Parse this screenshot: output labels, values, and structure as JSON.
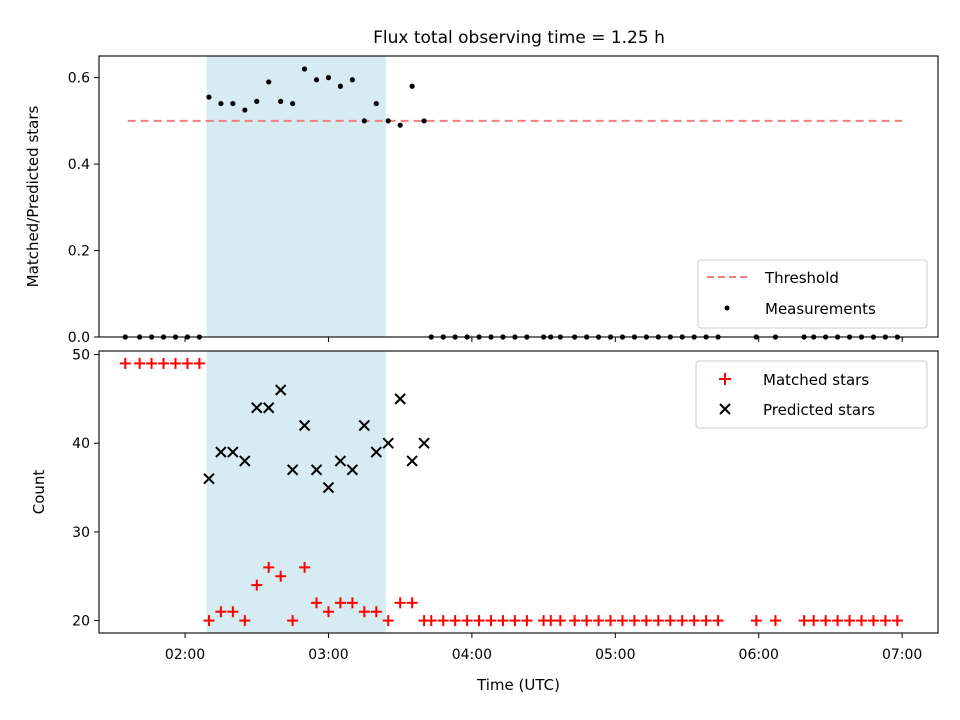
{
  "figure": {
    "title": "Flux total observing time = 1.25 h"
  },
  "colors": {
    "threshold": "#f08080",
    "measurement": "#000000",
    "matched": "#ff0000",
    "predicted": "#000000",
    "band": "#add8e6"
  },
  "chart_data": [
    {
      "type": "scatter",
      "title": "Flux total observing time = 1.25 h",
      "xlabel": "",
      "ylabel": "Matched/Predicted stars",
      "ylim": [
        0,
        0.65
      ],
      "yticks": [
        0.0,
        0.2,
        0.4,
        0.6
      ],
      "ytick_labels": [
        "0.0",
        "0.2",
        "0.4",
        "0.6"
      ],
      "xlim": [
        "01:24",
        "07:15"
      ],
      "x_unit": "time (UTC)",
      "highlight_band": {
        "from": "02:09",
        "to": "03:24"
      },
      "legend": {
        "placement": "lower right",
        "entries": [
          "Threshold",
          "Measurements"
        ]
      },
      "series": [
        {
          "name": "Threshold",
          "kind": "dashed-line",
          "x": [
            "01:36",
            "07:00"
          ],
          "y": [
            0.5,
            0.5
          ]
        },
        {
          "name": "Measurements",
          "kind": "dots",
          "x": [
            "01:35",
            "01:41",
            "01:46",
            "01:51",
            "01:56",
            "02:01",
            "02:06",
            "02:10",
            "02:15",
            "02:20",
            "02:25",
            "02:30",
            "02:35",
            "02:40",
            "02:45",
            "02:50",
            "02:55",
            "03:00",
            "03:05",
            "03:10",
            "03:15",
            "03:20",
            "03:25",
            "03:30",
            "03:35",
            "03:40",
            "03:43",
            "03:48",
            "03:53",
            "03:58",
            "04:03",
            "04:08",
            "04:13",
            "04:18",
            "04:23",
            "04:30",
            "04:33",
            "04:37",
            "04:43",
            "04:48",
            "04:53",
            "04:58",
            "05:03",
            "05:08",
            "05:13",
            "05:18",
            "05:23",
            "05:28",
            "05:33",
            "05:38",
            "05:43",
            "05:59",
            "06:07",
            "06:19",
            "06:23",
            "06:28",
            "06:33",
            "06:38",
            "06:43",
            "06:48",
            "06:53",
            "06:58"
          ],
          "y": [
            0,
            0,
            0,
            0,
            0,
            0,
            0,
            0.555,
            0.54,
            0.54,
            0.525,
            0.545,
            0.59,
            0.545,
            0.54,
            0.62,
            0.595,
            0.6,
            0.58,
            0.595,
            0.5,
            0.54,
            0.5,
            0.49,
            0.58,
            0.5,
            0,
            0,
            0,
            0,
            0,
            0,
            0,
            0,
            0,
            0,
            0,
            0,
            0,
            0,
            0,
            0,
            0,
            0,
            0,
            0,
            0,
            0,
            0,
            0,
            0,
            0,
            0,
            0,
            0,
            0,
            0,
            0,
            0,
            0,
            0,
            0
          ]
        }
      ]
    },
    {
      "type": "scatter",
      "title": "",
      "xlabel": "Time (UTC)",
      "ylabel": "Count",
      "ylim": [
        18.6,
        50.4
      ],
      "yticks": [
        20,
        30,
        40,
        50
      ],
      "ytick_labels": [
        "20",
        "30",
        "40",
        "50"
      ],
      "xlim": [
        "01:24",
        "07:15"
      ],
      "xticks": [
        "02:00",
        "03:00",
        "04:00",
        "05:00",
        "06:00",
        "07:00"
      ],
      "xtick_labels": [
        "02:00",
        "03:00",
        "04:00",
        "05:00",
        "06:00",
        "07:00"
      ],
      "highlight_band": {
        "from": "02:09",
        "to": "03:24"
      },
      "legend": {
        "placement": "upper right",
        "entries": [
          "Matched stars",
          "Predicted stars"
        ]
      },
      "series": [
        {
          "name": "Matched stars",
          "marker": "plus",
          "x": [
            "01:35",
            "01:41",
            "01:46",
            "01:51",
            "01:56",
            "02:01",
            "02:06",
            "02:10",
            "02:15",
            "02:20",
            "02:25",
            "02:30",
            "02:35",
            "02:40",
            "02:45",
            "02:50",
            "02:55",
            "03:00",
            "03:05",
            "03:10",
            "03:15",
            "03:20",
            "03:25",
            "03:30",
            "03:35",
            "03:40",
            "03:43",
            "03:48",
            "03:53",
            "03:58",
            "04:03",
            "04:08",
            "04:13",
            "04:18",
            "04:23",
            "04:30",
            "04:33",
            "04:37",
            "04:43",
            "04:48",
            "04:53",
            "04:58",
            "05:03",
            "05:08",
            "05:13",
            "05:18",
            "05:23",
            "05:28",
            "05:33",
            "05:38",
            "05:43",
            "05:59",
            "06:07",
            "06:19",
            "06:23",
            "06:28",
            "06:33",
            "06:38",
            "06:43",
            "06:48",
            "06:53",
            "06:58"
          ],
          "y": [
            49,
            49,
            49,
            49,
            49,
            49,
            49,
            20,
            21,
            21,
            20,
            24,
            26,
            25,
            20,
            26,
            22,
            21,
            22,
            22,
            21,
            21,
            20,
            22,
            22,
            20,
            20,
            20,
            20,
            20,
            20,
            20,
            20,
            20,
            20,
            20,
            20,
            20,
            20,
            20,
            20,
            20,
            20,
            20,
            20,
            20,
            20,
            20,
            20,
            20,
            20,
            20,
            20,
            20,
            20,
            20,
            20,
            20,
            20,
            20,
            20,
            20
          ]
        },
        {
          "name": "Predicted stars",
          "marker": "x",
          "x": [
            "02:10",
            "02:15",
            "02:20",
            "02:25",
            "02:30",
            "02:35",
            "02:40",
            "02:45",
            "02:50",
            "02:55",
            "03:00",
            "03:05",
            "03:10",
            "03:15",
            "03:20",
            "03:25",
            "03:30",
            "03:35",
            "03:40"
          ],
          "y": [
            36,
            39,
            39,
            38,
            44,
            44,
            46,
            37,
            42,
            37,
            35,
            38,
            37,
            42,
            39,
            40,
            45,
            38,
            40
          ]
        }
      ]
    }
  ]
}
